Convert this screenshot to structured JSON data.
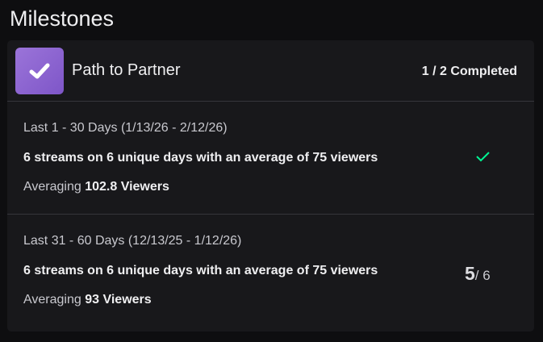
{
  "page_title": "Milestones",
  "milestone": {
    "name": "Path to Partner",
    "status": "1 / 2 Completed",
    "accent_color": "#8a63d2",
    "rows": [
      {
        "period": "Last 1 - 30 Days (1/13/26 - 2/12/26)",
        "goal": "6 streams on 6 unique days with an average of 75 viewers",
        "avg_prefix": "Averaging",
        "avg_value": "102.8 Viewers",
        "completed": true,
        "status_icon": "check-icon",
        "status_color": "#00f593"
      },
      {
        "period": "Last 31 - 60 Days (12/13/25 - 1/12/26)",
        "goal": "6 streams on 6 unique days with an average of 75 viewers",
        "avg_prefix": "Averaging",
        "avg_value": "93 Viewers",
        "completed": false,
        "progress_current": "5",
        "progress_total": "/ 6"
      }
    ]
  }
}
